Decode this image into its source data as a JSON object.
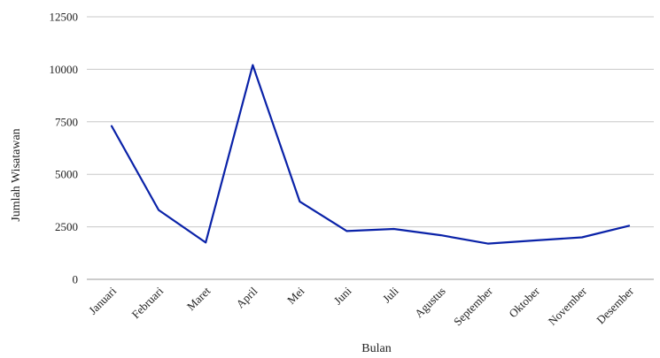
{
  "chart_data": {
    "type": "line",
    "title": "",
    "xlabel": "Bulan",
    "ylabel": "Jumlah Wisatawan",
    "categories": [
      "Januari",
      "Februari",
      "Maret",
      "April",
      "Mei",
      "Juni",
      "Juli",
      "Agustus",
      "September",
      "Oktober",
      "November",
      "Desember"
    ],
    "series": [
      {
        "values": [
          7300,
          3300,
          1750,
          10200,
          3700,
          2300,
          2400,
          2100,
          1700,
          1850,
          2000,
          2550
        ],
        "color": "#0a22a8"
      }
    ],
    "yticks": [
      "0",
      "2500",
      "5000",
      "7500",
      "10000",
      "12500"
    ],
    "ylim": [
      0,
      12500
    ],
    "grid": true,
    "gridline_color": "#c8c8c8"
  }
}
